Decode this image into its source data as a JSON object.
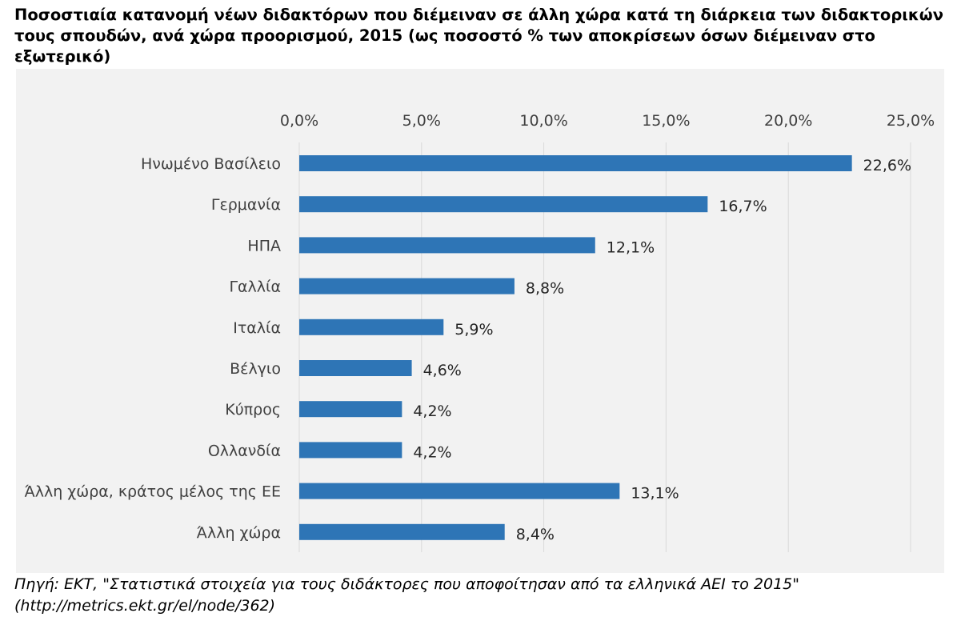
{
  "chart_data": {
    "type": "bar",
    "orientation": "horizontal",
    "title": "Ποσοστιαία κατανομή νέων διδακτόρων που διέμειναν σε άλλη χώρα κατά τη διάρκεια των διδακτορικών τους σπουδών, ανά χώρα προορισμού, 2015 (ως ποσοστό % των αποκρίσεων όσων διέμειναν στο εξωτερικό)",
    "categories": [
      "Ηνωμένο Βασίλειο",
      "Γερμανία",
      "ΗΠΑ",
      "Γαλλία",
      "Ιταλία",
      "Βέλγιο",
      "Κύπρος",
      "Ολλανδία",
      "Άλλη χώρα, κράτος μέλος της ΕΕ",
      "Άλλη χώρα"
    ],
    "values": [
      22.6,
      16.7,
      12.1,
      8.8,
      5.9,
      4.6,
      4.2,
      4.2,
      13.1,
      8.4
    ],
    "value_labels": [
      "22,6%",
      "16,7%",
      "12,1%",
      "8,8%",
      "5,9%",
      "4,6%",
      "4,2%",
      "4,2%",
      "13,1%",
      "8,4%"
    ],
    "x_ticks": [
      0,
      5,
      10,
      15,
      20,
      25
    ],
    "x_tick_labels": [
      "0,0%",
      "5,0%",
      "10,0%",
      "15,0%",
      "20,0%",
      "25,0%"
    ],
    "xlim": [
      0,
      25
    ],
    "xaxis_position": "top",
    "grid": true,
    "bar_color": "#2e75b6",
    "gridline_color": "#d9d9d9",
    "plot_background": "#f2f2f2"
  },
  "source": {
    "line1": "Πηγή: ΕΚΤ, \"Στατιστικά στοιχεία για τους διδάκτορες που αποφοίτησαν από τα ελληνικά ΑΕΙ το 2015\"",
    "line2": "(http://metrics.ekt.gr/el/node/362)"
  }
}
